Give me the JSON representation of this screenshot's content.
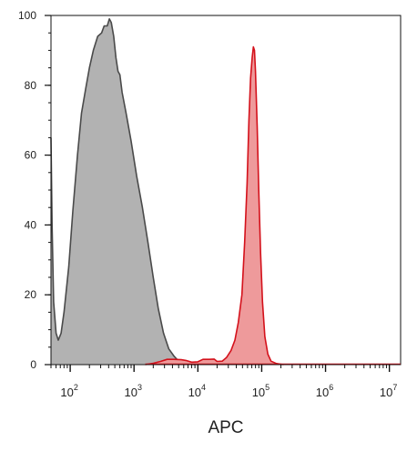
{
  "chart_data": {
    "type": "area",
    "title": "",
    "xlabel": "APC",
    "ylabel": "",
    "x_scale": "log",
    "xlim": [
      50,
      15000000
    ],
    "ylim": [
      0,
      100
    ],
    "grid": false,
    "yticks": [
      {
        "value": 0,
        "label": "0"
      },
      {
        "value": 20,
        "label": "20"
      },
      {
        "value": 40,
        "label": "40"
      },
      {
        "value": 60,
        "label": "60"
      },
      {
        "value": 80,
        "label": "80"
      },
      {
        "value": 100,
        "label": "100"
      }
    ],
    "xticks": [
      {
        "value": 100,
        "base": "10",
        "exp": "2"
      },
      {
        "value": 1000,
        "base": "10",
        "exp": "3"
      },
      {
        "value": 10000,
        "base": "10",
        "exp": "4"
      },
      {
        "value": 100000,
        "base": "10",
        "exp": "5"
      },
      {
        "value": 1000000,
        "base": "10",
        "exp": "6"
      },
      {
        "value": 10000000,
        "base": "10",
        "exp": "7"
      }
    ],
    "series": [
      {
        "fill": "#b2b2b2",
        "stroke": "#4a4a4a",
        "points": [
          [
            50,
            65
          ],
          [
            52,
            40
          ],
          [
            55,
            18
          ],
          [
            60,
            9
          ],
          [
            65,
            7
          ],
          [
            72,
            9
          ],
          [
            80,
            15
          ],
          [
            95,
            28
          ],
          [
            110,
            44
          ],
          [
            130,
            60
          ],
          [
            150,
            72
          ],
          [
            175,
            79
          ],
          [
            200,
            85
          ],
          [
            230,
            90
          ],
          [
            270,
            94
          ],
          [
            310,
            95
          ],
          [
            340,
            97
          ],
          [
            380,
            97
          ],
          [
            410,
            99
          ],
          [
            440,
            98
          ],
          [
            480,
            94
          ],
          [
            520,
            88
          ],
          [
            560,
            84
          ],
          [
            600,
            83
          ],
          [
            650,
            78
          ],
          [
            750,
            72
          ],
          [
            900,
            64
          ],
          [
            1100,
            54
          ],
          [
            1350,
            45
          ],
          [
            1650,
            35
          ],
          [
            2000,
            25
          ],
          [
            2400,
            16
          ],
          [
            2900,
            9
          ],
          [
            3500,
            4.5
          ],
          [
            4200,
            2.5
          ],
          [
            5000,
            1
          ],
          [
            6500,
            0.3
          ],
          [
            9000,
            0
          ]
        ]
      },
      {
        "fill": "#ee9a9b",
        "stroke": "#d4111b",
        "points": [
          [
            1500,
            0
          ],
          [
            2000,
            0.4
          ],
          [
            2600,
            0.9
          ],
          [
            3300,
            1.5
          ],
          [
            4200,
            1.5
          ],
          [
            5500,
            1.4
          ],
          [
            6500,
            1.2
          ],
          [
            8000,
            0.7
          ],
          [
            10000,
            0.8
          ],
          [
            12000,
            1.5
          ],
          [
            15000,
            1.5
          ],
          [
            18000,
            1.6
          ],
          [
            20000,
            0.9
          ],
          [
            24000,
            1
          ],
          [
            28000,
            2
          ],
          [
            33000,
            4
          ],
          [
            38000,
            7
          ],
          [
            43000,
            12
          ],
          [
            49000,
            20
          ],
          [
            54000,
            35
          ],
          [
            59000,
            52
          ],
          [
            63000,
            70
          ],
          [
            67000,
            82
          ],
          [
            71000,
            88
          ],
          [
            74000,
            91
          ],
          [
            77000,
            90
          ],
          [
            80000,
            84
          ],
          [
            85000,
            68
          ],
          [
            90000,
            50
          ],
          [
            96000,
            32
          ],
          [
            103000,
            18
          ],
          [
            112000,
            8
          ],
          [
            125000,
            3
          ],
          [
            140000,
            1
          ],
          [
            170000,
            0.3
          ],
          [
            220000,
            0
          ]
        ]
      }
    ]
  }
}
